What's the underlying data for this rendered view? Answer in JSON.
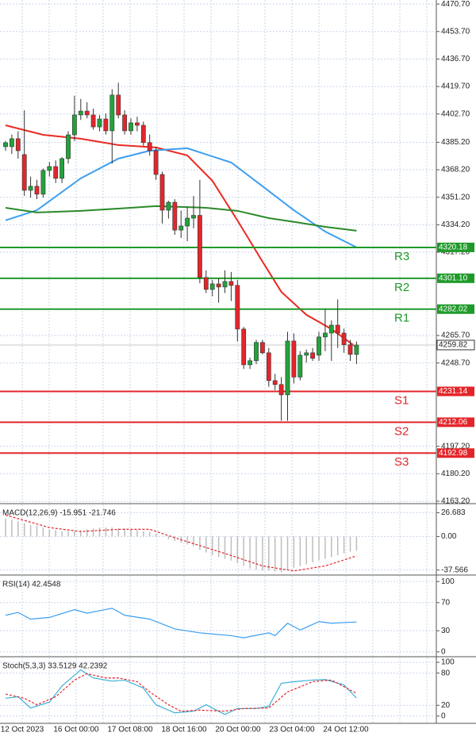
{
  "chart_data": [
    {
      "type": "candlestick",
      "open": [
        4382.5,
        4382.5,
        4387.4,
        4377.6,
        4355.5,
        4358,
        4353.1,
        4367.8,
        4370.2,
        4362.9,
        4375.1,
        4389.8,
        4402.1,
        4404.5,
        4402.1,
        4394.7,
        4399.6,
        4392.3,
        4414.4,
        4402.1,
        4392.3,
        4397.2,
        4395.7,
        4385,
        4380,
        4365.3,
        4343.2,
        4348.1,
        4330.9,
        4333.4,
        4338.3,
        4340,
        4301.6,
        4294.2,
        4297.6,
        4295.7,
        4299.1,
        4296.7,
        4269.7,
        4247.6,
        4250.1,
        4261.4,
        4255,
        4237.8,
        4235.4,
        4229,
        4262.3,
        4240,
        4253.5,
        4255,
        4253.5,
        4264.8,
        4267.2,
        4272.1,
        4267.2,
        4260,
        4254
      ],
      "high": [
        4386,
        4390,
        4392,
        4405,
        4364,
        4362,
        4369,
        4373,
        4374,
        4376,
        4392,
        4414,
        4412,
        4410,
        4406,
        4402,
        4403,
        4418,
        4422,
        4405,
        4400,
        4401,
        4398,
        4390,
        4382,
        4367,
        4349,
        4350,
        4343,
        4345,
        4352,
        4362,
        4306,
        4300,
        4301,
        4306,
        4305,
        4300,
        4271,
        4252,
        4263,
        4263,
        4258,
        4242,
        4240,
        4268,
        4267,
        4256,
        4257,
        4258,
        4268,
        4282,
        4275,
        4288,
        4270,
        4263,
        4262
      ],
      "low": [
        4380,
        4378,
        4375,
        4352,
        4351,
        4350,
        4351,
        4364,
        4360,
        4360,
        4372,
        4386,
        4399,
        4400,
        4393,
        4392,
        4390,
        4372,
        4400,
        4390,
        4390,
        4392,
        4383,
        4377,
        4362,
        4335,
        4338,
        4328,
        4326,
        4324,
        4332,
        4298,
        4292,
        4290,
        4286,
        4292,
        4287,
        4262,
        4245,
        4245,
        4248,
        4254,
        4234,
        4232,
        4213,
        4213,
        4236,
        4238,
        4249,
        4250,
        4250,
        4256,
        4250,
        4258,
        4255,
        4250,
        4248
      ],
      "close": [
        4384.9,
        4387.4,
        4380,
        4355.5,
        4358,
        4353.1,
        4367.8,
        4370.2,
        4362.9,
        4375.1,
        4389.8,
        4402.1,
        4404.5,
        4402.1,
        4394.7,
        4399.6,
        4392.3,
        4414.4,
        4402.1,
        4392.3,
        4397.2,
        4395.7,
        4385,
        4380,
        4365.3,
        4343.2,
        4348.1,
        4330.9,
        4333.4,
        4338.3,
        4340,
        4301.6,
        4294.2,
        4297.6,
        4295.7,
        4299.1,
        4296.7,
        4269.7,
        4247.6,
        4250.1,
        4261.4,
        4255,
        4237.8,
        4235.4,
        4229,
        4262.3,
        4240,
        4253.5,
        4255,
        4251.6,
        4264.8,
        4267.2,
        4272.1,
        4267.2,
        4260,
        4254,
        4259.82
      ],
      "colors": {
        "up": "#22a33a",
        "down": "#e3262b"
      },
      "series": [
        {
          "color": "#ec2a22",
          "x": [
            0,
            6,
            12,
            18,
            24,
            29,
            33,
            37,
            41,
            44,
            48,
            52,
            56
          ],
          "values": [
            4395.7,
            4389.8,
            4387.4,
            4383.5,
            4382,
            4377.1,
            4361.4,
            4336.9,
            4311.4,
            4292.7,
            4278.5,
            4269.7,
            4258.4
          ]
        },
        {
          "color": "#3d9ef0",
          "x": [
            0,
            5,
            12,
            18,
            23,
            29,
            36,
            41,
            46,
            51,
            56
          ],
          "values": [
            4336.9,
            4343.2,
            4362.9,
            4375.1,
            4380,
            4381.5,
            4372.7,
            4358,
            4343.2,
            4330,
            4320.2
          ]
        },
        {
          "color": "#2a8a2a",
          "x": [
            0,
            5,
            12,
            18,
            24,
            32,
            37,
            42,
            47,
            51,
            56
          ],
          "values": [
            4344.7,
            4341.8,
            4342.8,
            4344.2,
            4345.7,
            4344.7,
            4342.8,
            4338.3,
            4335.4,
            4332.9,
            4330.5
          ]
        }
      ],
      "levels": {
        "names": [
          "R3",
          "R2",
          "R1",
          "S1",
          "S2",
          "S3"
        ],
        "values": [
          4320.18,
          4301.1,
          4282.02,
          4231.14,
          4212.06,
          4192.98
        ],
        "value_labels": [
          "4320.18",
          "4301.10",
          "4282.02",
          "4231.14",
          "4212.06",
          "4192.98"
        ],
        "colors": [
          "#1f9a2a",
          "#1f9a2a",
          "#1f9a2a",
          "#e3262b",
          "#e3262b",
          "#e3262b"
        ]
      },
      "last": 4259.82,
      "ylim": [
        4162.2,
        4473.2
      ],
      "yticks": [
        {
          "value": 4470.7,
          "label": "4470.70"
        },
        {
          "value": 4453.7,
          "label": "4453.70"
        },
        {
          "value": 4436.7,
          "label": "4436.70"
        },
        {
          "value": 4419.7,
          "label": "4419.70"
        },
        {
          "value": 4402.7,
          "label": "4402.70"
        },
        {
          "value": 4385.2,
          "label": "4385.20"
        },
        {
          "value": 4368.2,
          "label": "4368.20"
        },
        {
          "value": 4351.2,
          "label": "4351.20"
        },
        {
          "value": 4334.2,
          "label": "4334.20"
        },
        {
          "value": 4317.2,
          "label": "4317.20"
        },
        {
          "value": 4265.7,
          "label": "4265.70"
        },
        {
          "value": 4248.7,
          "label": "4248.70"
        },
        {
          "value": 4197.2,
          "label": "4197.20"
        },
        {
          "value": 4180.2,
          "label": "4180.20"
        },
        {
          "value": 4163.2,
          "label": "4163.20"
        }
      ],
      "grid": true,
      "x_labels": [
        "12 Oct 2023",
        "16 Oct 00:00",
        "17 Oct 08:00",
        "18 Oct 16:00",
        "20 Oct 00:00",
        "23 Oct 04:00",
        "24 Oct 12:00"
      ]
    },
    {
      "type": "macd",
      "title": "MACD(12,26,9) -15.951 -21.746",
      "values": [
        20,
        19,
        17,
        15,
        13,
        12,
        10,
        8,
        7,
        6,
        6,
        6,
        7,
        8,
        9,
        10,
        10,
        10,
        9,
        9,
        8,
        7,
        6,
        5,
        3,
        0,
        -3,
        -5,
        -7,
        -9,
        -11,
        -15,
        -18,
        -21,
        -23,
        -25,
        -27,
        -30,
        -33,
        -36,
        -37,
        -38,
        -38,
        -39,
        -40,
        -37,
        -35,
        -33,
        -31,
        -29,
        -27,
        -25,
        -23,
        -21,
        -19,
        -17,
        -15.951
      ],
      "color": "#bdbdbd",
      "series": [
        {
          "color": "#e3262b",
          "x": [
            0,
            7,
            12,
            18,
            23,
            28,
            35,
            41,
            46,
            51,
            56
          ],
          "values": [
            24,
            10,
            5.5,
            8,
            8,
            -3.7,
            -19,
            -33,
            -38.6,
            -33,
            -21.746
          ]
        }
      ],
      "ylim": [
        -42.3,
        35.9
      ],
      "yticks": [
        26.683,
        {
          "value": 0,
          "label": "0.00"
        },
        -37.566
      ]
    },
    {
      "type": "line",
      "title": "RSI(14) 42.4548",
      "series": [
        {
          "color": "#3d9ef0",
          "x": [
            0,
            2,
            4,
            7,
            11,
            13,
            17,
            19,
            23,
            27,
            31,
            36,
            38,
            42,
            43,
            45,
            47,
            50,
            52,
            56
          ],
          "values": [
            52,
            56,
            46.5,
            49,
            60,
            55,
            62,
            52,
            46.5,
            32.6,
            27,
            23,
            20,
            27,
            23,
            40.7,
            31,
            43,
            40.7,
            42.4548
          ]
        }
      ],
      "ylim": [
        -5.8,
        108.1
      ],
      "yticks": [
        100,
        70,
        30,
        0
      ]
    },
    {
      "type": "line",
      "title": "Stoch(5,3,3) 33.5129 42.2392",
      "series": [
        {
          "color": "#3bb0d8",
          "x": [
            0,
            2,
            4,
            7,
            9,
            12,
            14,
            17,
            19,
            22,
            24,
            27,
            30,
            32,
            35,
            37,
            40,
            42,
            44,
            46,
            49,
            51,
            54,
            56
          ],
          "values": [
            33,
            36,
            15,
            26,
            56,
            86,
            71,
            65,
            67,
            52,
            21,
            6,
            9,
            21,
            3,
            14,
            14,
            18,
            61,
            64,
            67,
            68,
            58,
            33.5129
          ]
        },
        {
          "color": "#e3262b",
          "dashed": true,
          "x": [
            0,
            3,
            5,
            8,
            11,
            13,
            16,
            18,
            21,
            23,
            26,
            28,
            31,
            35,
            38,
            42,
            45,
            49,
            52,
            56
          ],
          "values": [
            41,
            33,
            21,
            36,
            67,
            79,
            71,
            71,
            64,
            45,
            21,
            9,
            11,
            9,
            14,
            15,
            45,
            64,
            67,
            42.2392
          ]
        }
      ],
      "ylim": [
        -12.1,
        109
      ],
      "yticks": [
        100,
        80,
        20,
        0
      ]
    }
  ]
}
